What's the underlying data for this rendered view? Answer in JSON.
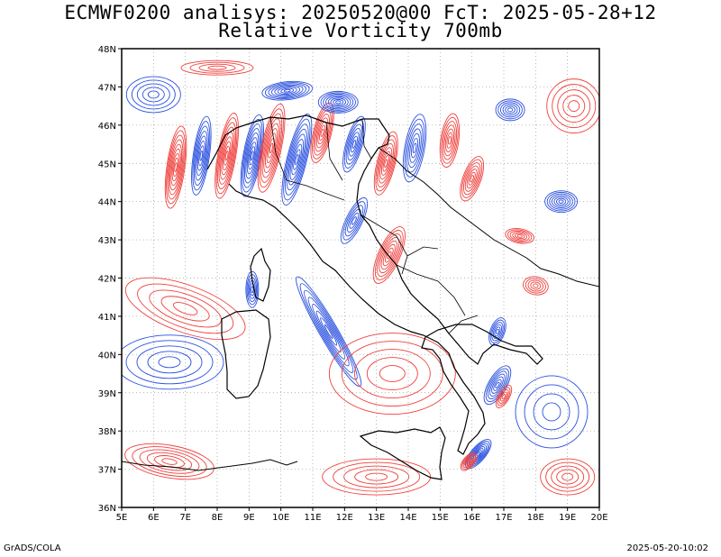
{
  "title_line1": "ECMWF0200 analisys: 20250520@00 FcT: 2025-05-28+12",
  "title_line2": "Relative Vorticity 700mb",
  "footer_left": "GrADS/COLA",
  "footer_right": "2025-05-20-10:02",
  "map": {
    "lon_range": [
      5,
      20
    ],
    "lat_range": [
      36,
      48
    ],
    "lon_ticks": [
      "5E",
      "6E",
      "7E",
      "8E",
      "9E",
      "10E",
      "11E",
      "12E",
      "13E",
      "14E",
      "15E",
      "16E",
      "17E",
      "18E",
      "19E",
      "20E"
    ],
    "lat_ticks": [
      "36N",
      "37N",
      "38N",
      "39N",
      "40N",
      "41N",
      "42N",
      "43N",
      "44N",
      "45N",
      "46N",
      "47N",
      "48N"
    ],
    "positive_color": "#f0403c",
    "negative_color": "#2a50e0",
    "coastline_color": "#000000",
    "grid": "dotted"
  }
}
